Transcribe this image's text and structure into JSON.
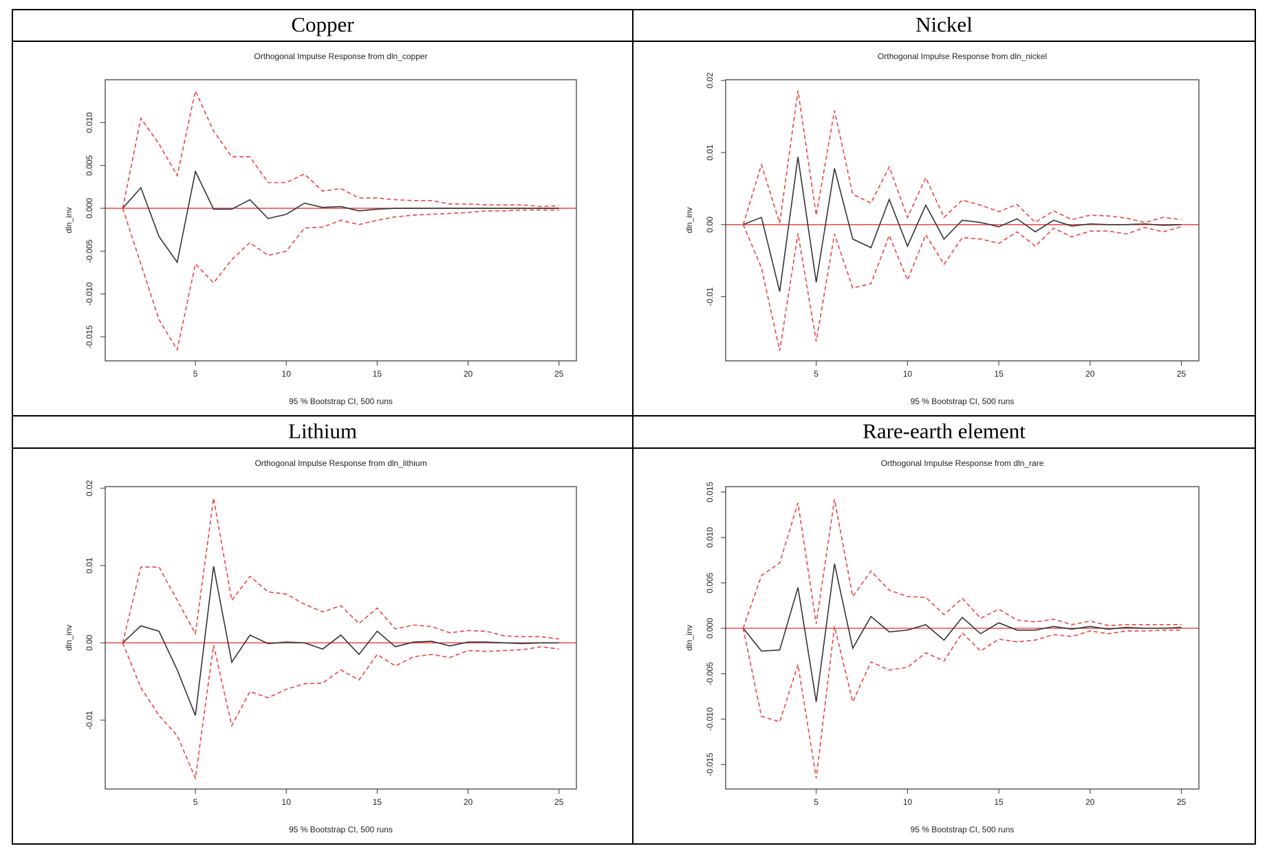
{
  "chart_data": [
    {
      "type": "line",
      "heading": "Copper",
      "title": "Orthogonal Impulse Response from dln_copper",
      "xlabel": "95 % Bootstrap CI,  500 runs",
      "ylabel": "dln_inv",
      "x": [
        1,
        2,
        3,
        4,
        5,
        6,
        7,
        8,
        9,
        10,
        11,
        12,
        13,
        14,
        15,
        16,
        17,
        18,
        19,
        20,
        21,
        22,
        23,
        24,
        25
      ],
      "xlim": [
        0.04,
        25.96
      ],
      "xticks": [
        5,
        10,
        15,
        20,
        25
      ],
      "ylim": [
        -0.0178,
        0.015
      ],
      "yticks": [
        {
          "value": -0.015,
          "label": "-0.015"
        },
        {
          "value": -0.01,
          "label": "-0.010"
        },
        {
          "value": -0.005,
          "label": "-0.005"
        },
        {
          "value": 0,
          "label": "0.000"
        },
        {
          "value": 0.005,
          "label": "0.005"
        },
        {
          "value": 0.01,
          "label": "0.010"
        }
      ],
      "hline": 0,
      "hline_color": "#f05050",
      "series": [
        {
          "color": "#333333",
          "linestyle": "solid",
          "values": [
            0,
            0.0024,
            -0.0033,
            -0.0063,
            0.0043,
            -0.0001,
            -0.0001,
            0.001,
            -0.0012,
            -0.0007,
            0.0006,
            0.0001,
            0.0002,
            -0.0003,
            -0.0001,
            0,
            0,
            0,
            0,
            0,
            0,
            0,
            0,
            0,
            0
          ]
        },
        {
          "color": "#f04040",
          "linestyle": "dashed",
          "values": [
            0,
            0.0105,
            0.0075,
            0.0038,
            0.0137,
            0.009,
            0.006,
            0.006,
            0.003,
            0.003,
            0.004,
            0.002,
            0.0023,
            0.0012,
            0.0012,
            0.001,
            0.0009,
            0.0009,
            0.0005,
            0.0005,
            0.0004,
            0.0004,
            0.0004,
            0.0002,
            0.0003
          ]
        },
        {
          "color": "#f04040",
          "linestyle": "dashed",
          "values": [
            0,
            -0.0065,
            -0.013,
            -0.0165,
            -0.0065,
            -0.0087,
            -0.006,
            -0.004,
            -0.0055,
            -0.005,
            -0.0023,
            -0.0022,
            -0.0014,
            -0.0019,
            -0.0014,
            -0.001,
            -0.0008,
            -0.0007,
            -0.0006,
            -0.0005,
            -0.0003,
            -0.0003,
            -0.0002,
            -0.0002,
            -0.0002
          ]
        }
      ]
    },
    {
      "type": "line",
      "heading": "Nickel",
      "title": "Orthogonal Impulse Response from dln_nickel",
      "xlabel": "95 % Bootstrap CI,  500 runs",
      "ylabel": "dln_inv",
      "x": [
        1,
        2,
        3,
        4,
        5,
        6,
        7,
        8,
        9,
        10,
        11,
        12,
        13,
        14,
        15,
        16,
        17,
        18,
        19,
        20,
        21,
        22,
        23,
        24,
        25
      ],
      "xlim": [
        0.04,
        25.96
      ],
      "xticks": [
        5,
        10,
        15,
        20,
        25
      ],
      "ylim": [
        -0.0189,
        0.0201
      ],
      "yticks": [
        {
          "value": -0.01,
          "label": "-0.01"
        },
        {
          "value": 0,
          "label": "0.00"
        },
        {
          "value": 0.01,
          "label": "0.01"
        },
        {
          "value": 0.02,
          "label": "0.02"
        }
      ],
      "hline": 0,
      "hline_color": "#f05050",
      "series": [
        {
          "color": "#333333",
          "linestyle": "solid",
          "values": [
            0,
            0.001,
            -0.0093,
            0.0094,
            -0.008,
            0.0078,
            -0.002,
            -0.0032,
            0.0035,
            -0.003,
            0.0027,
            -0.002,
            0.0006,
            0.0003,
            -0.0003,
            0.0008,
            -0.001,
            0.0006,
            -0.0002,
            0.0001,
            0,
            0,
            0.0001,
            -0.0001,
            0
          ]
        },
        {
          "color": "#f04040",
          "linestyle": "dashed",
          "values": [
            0,
            0.0083,
            0.0002,
            0.0186,
            0.0013,
            0.0158,
            0.0042,
            0.003,
            0.008,
            0.001,
            0.0065,
            0.001,
            0.0034,
            0.0027,
            0.0018,
            0.0028,
            0.0003,
            0.0019,
            0.0007,
            0.0013,
            0.0012,
            0.0009,
            0.0003,
            0.001,
            0.0007
          ]
        },
        {
          "color": "#f04040",
          "linestyle": "dashed",
          "values": [
            0,
            -0.006,
            -0.0175,
            -0.0012,
            -0.0162,
            -0.0013,
            -0.0088,
            -0.0082,
            -0.0015,
            -0.0077,
            -0.0014,
            -0.0055,
            -0.0018,
            -0.002,
            -0.0026,
            -0.001,
            -0.003,
            -0.0005,
            -0.0017,
            -0.0009,
            -0.0009,
            -0.0013,
            -0.0004,
            -0.001,
            -0.0003
          ]
        }
      ]
    },
    {
      "type": "line",
      "heading": "Lithium",
      "title": "Orthogonal Impulse Response from dln_lithium",
      "xlabel": "95 % Bootstrap CI,  500 runs",
      "ylabel": "dln_inv",
      "x": [
        1,
        2,
        3,
        4,
        5,
        6,
        7,
        8,
        9,
        10,
        11,
        12,
        13,
        14,
        15,
        16,
        17,
        18,
        19,
        20,
        21,
        22,
        23,
        24,
        25
      ],
      "xlim": [
        0.04,
        25.96
      ],
      "xticks": [
        5,
        10,
        15,
        20,
        25
      ],
      "ylim": [
        -0.0189,
        0.0202
      ],
      "yticks": [
        {
          "value": -0.01,
          "label": "-0.01"
        },
        {
          "value": 0,
          "label": "0.00"
        },
        {
          "value": 0.01,
          "label": "0.01"
        },
        {
          "value": 0.02,
          "label": "0.02"
        }
      ],
      "hline": 0,
      "hline_color": "#f05050",
      "series": [
        {
          "color": "#333333",
          "linestyle": "solid",
          "values": [
            0,
            0.0022,
            0.0015,
            -0.0035,
            -0.0094,
            0.0099,
            -0.0025,
            0.001,
            -0.0001,
            0.0001,
            0,
            -0.0008,
            0.001,
            -0.0015,
            0.0015,
            -0.0005,
            0.0001,
            0.0002,
            -0.0004,
            0.0001,
            0.0001,
            0,
            -0.0001,
            0,
            0
          ]
        },
        {
          "color": "#f04040",
          "linestyle": "dashed",
          "values": [
            0,
            0.0098,
            0.0098,
            0.0055,
            0.0012,
            0.0187,
            0.0055,
            0.0086,
            0.0066,
            0.0063,
            0.005,
            0.004,
            0.0048,
            0.0025,
            0.0045,
            0.0018,
            0.0023,
            0.0021,
            0.0013,
            0.0016,
            0.0015,
            0.0009,
            0.0008,
            0.0008,
            0.0005
          ]
        },
        {
          "color": "#f04040",
          "linestyle": "dashed",
          "values": [
            0,
            -0.0058,
            -0.0094,
            -0.012,
            -0.0175,
            -0.0003,
            -0.0107,
            -0.0063,
            -0.0071,
            -0.006,
            -0.0053,
            -0.0052,
            -0.0035,
            -0.0048,
            -0.0015,
            -0.003,
            -0.0018,
            -0.0015,
            -0.0019,
            -0.001,
            -0.0011,
            -0.001,
            -0.0009,
            -0.0005,
            -0.0008
          ]
        }
      ]
    },
    {
      "type": "line",
      "heading": "Rare-earth  element",
      "title": "Orthogonal Impulse Response from dln_rare",
      "xlabel": "95 % Bootstrap CI,  500 runs",
      "ylabel": "dln_inv",
      "x": [
        1,
        2,
        3,
        4,
        5,
        6,
        7,
        8,
        9,
        10,
        11,
        12,
        13,
        14,
        15,
        16,
        17,
        18,
        19,
        20,
        21,
        22,
        23,
        24,
        25
      ],
      "xlim": [
        0.04,
        25.96
      ],
      "xticks": [
        5,
        10,
        15,
        20,
        25
      ],
      "ylim": [
        -0.0177,
        0.0156
      ],
      "yticks": [
        {
          "value": -0.015,
          "label": "-0.015"
        },
        {
          "value": -0.01,
          "label": "-0.010"
        },
        {
          "value": -0.005,
          "label": "-0.005"
        },
        {
          "value": 0,
          "label": "0.000"
        },
        {
          "value": 0.005,
          "label": "0.005"
        },
        {
          "value": 0.01,
          "label": "0.010"
        },
        {
          "value": 0.015,
          "label": "0.015"
        }
      ],
      "hline": 0,
      "hline_color": "#f05050",
      "series": [
        {
          "color": "#333333",
          "linestyle": "solid",
          "values": [
            0,
            -0.0025,
            -0.0024,
            0.0045,
            -0.0081,
            0.0071,
            -0.0022,
            0.0013,
            -0.0004,
            -0.0002,
            0.0004,
            -0.0013,
            0.0012,
            -0.0006,
            0.0006,
            -0.0002,
            -0.0002,
            0.0002,
            -0.0001,
            0.0002,
            -0.0001,
            0.0001,
            0,
            0,
            0.0001
          ]
        },
        {
          "color": "#f04040",
          "linestyle": "dashed",
          "values": [
            0,
            0.0058,
            0.0072,
            0.0138,
            0.0005,
            0.0142,
            0.0035,
            0.0063,
            0.0042,
            0.0035,
            0.0034,
            0.0015,
            0.0033,
            0.0011,
            0.0021,
            0.0009,
            0.0007,
            0.001,
            0.0004,
            0.0008,
            0.0003,
            0.0004,
            0.0004,
            0.0004,
            0.0004
          ]
        },
        {
          "color": "#f04040",
          "linestyle": "dashed",
          "values": [
            0,
            -0.0097,
            -0.0103,
            -0.004,
            -0.0165,
            0.0002,
            -0.0081,
            -0.0037,
            -0.0046,
            -0.0043,
            -0.0027,
            -0.0036,
            -0.0005,
            -0.0025,
            -0.0012,
            -0.0015,
            -0.0013,
            -0.0007,
            -0.0009,
            -0.0003,
            -0.0006,
            -0.0003,
            -0.0003,
            -0.0002,
            -0.0002
          ]
        }
      ]
    }
  ]
}
